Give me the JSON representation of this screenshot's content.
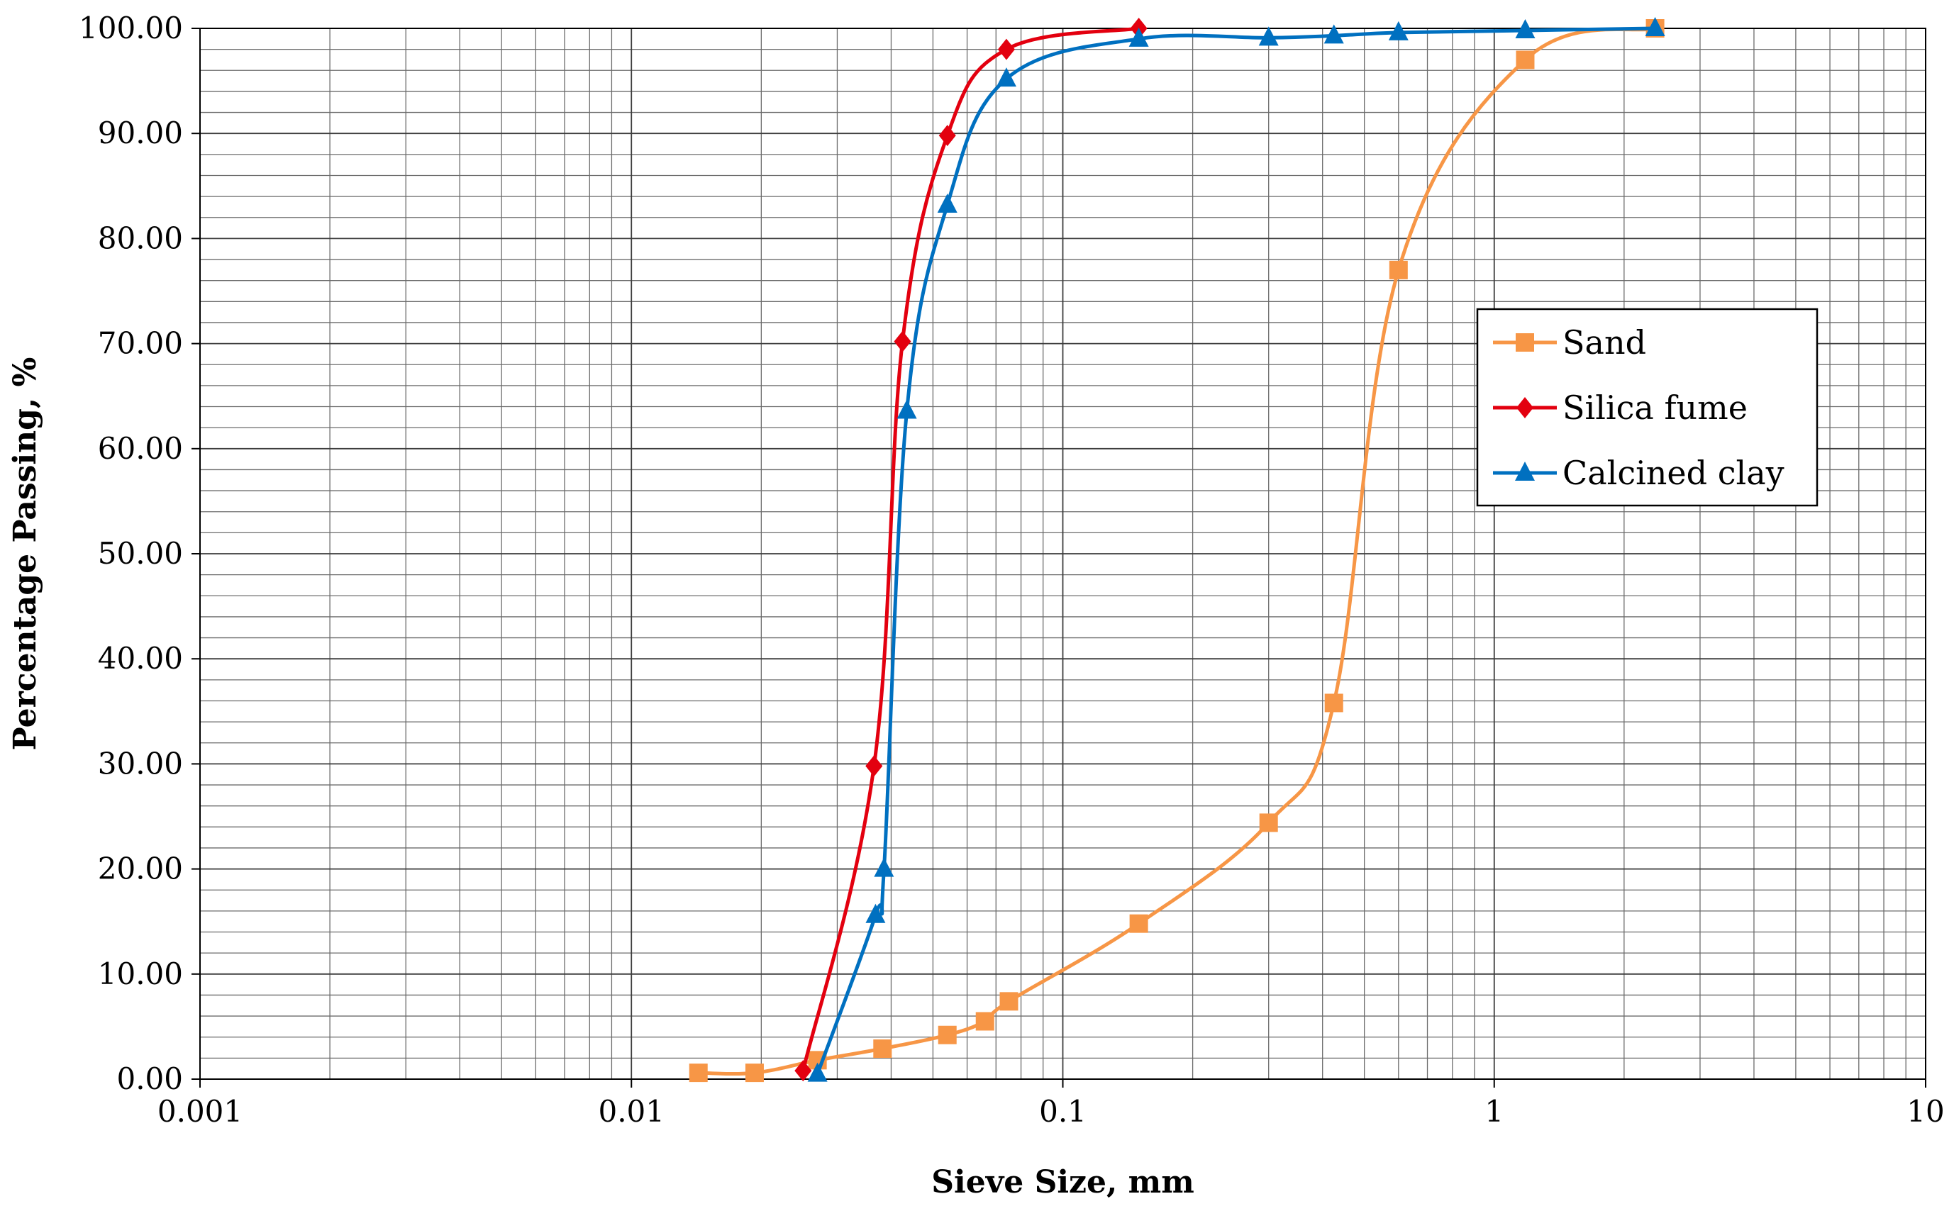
{
  "chart_data": {
    "type": "line",
    "title": "",
    "xlabel": "Sieve Size, mm",
    "ylabel": "Percentage Passing, %",
    "x_scale": "log",
    "xlim": [
      0.001,
      10
    ],
    "ylim": [
      0,
      100
    ],
    "x_ticks": [
      0.001,
      0.01,
      0.1,
      1,
      10
    ],
    "x_tick_labels": [
      "0.001",
      "0.01",
      "0.1",
      "1",
      "10"
    ],
    "y_ticks": [
      0,
      10,
      20,
      30,
      40,
      50,
      60,
      70,
      80,
      90,
      100
    ],
    "y_tick_labels": [
      "0.00",
      "10.00",
      "20.00",
      "30.00",
      "40.00",
      "50.00",
      "60.00",
      "70.00",
      "80.00",
      "90.00",
      "100.00"
    ],
    "grid": true,
    "legend_position": "right",
    "series": [
      {
        "name": "Sand",
        "color": "#F79646",
        "marker": "square",
        "x": [
          0.0143,
          0.0193,
          0.027,
          0.0382,
          0.054,
          0.066,
          0.075,
          0.15,
          0.3,
          0.425,
          0.6,
          1.18,
          2.36
        ],
        "y": [
          0.6,
          0.6,
          1.8,
          2.9,
          4.2,
          5.5,
          7.4,
          14.8,
          24.4,
          35.8,
          77.0,
          97.0,
          100.0
        ]
      },
      {
        "name": "Silica fume",
        "color": "#E3000F",
        "marker": "diamond",
        "x": [
          0.025,
          0.0365,
          0.0425,
          0.054,
          0.074,
          0.15
        ],
        "y": [
          0.8,
          29.8,
          70.2,
          89.8,
          98.0,
          100.0
        ]
      },
      {
        "name": "Calcined clay",
        "color": "#0070C0",
        "marker": "triangle",
        "x": [
          0.027,
          0.0368,
          0.0385,
          0.0435,
          0.054,
          0.074,
          0.15,
          0.3,
          0.425,
          0.6,
          1.18,
          2.36
        ],
        "y": [
          0.5,
          15.6,
          20.0,
          63.6,
          83.2,
          95.2,
          99.0,
          99.1,
          99.3,
          99.6,
          99.8,
          100.0
        ]
      }
    ]
  }
}
